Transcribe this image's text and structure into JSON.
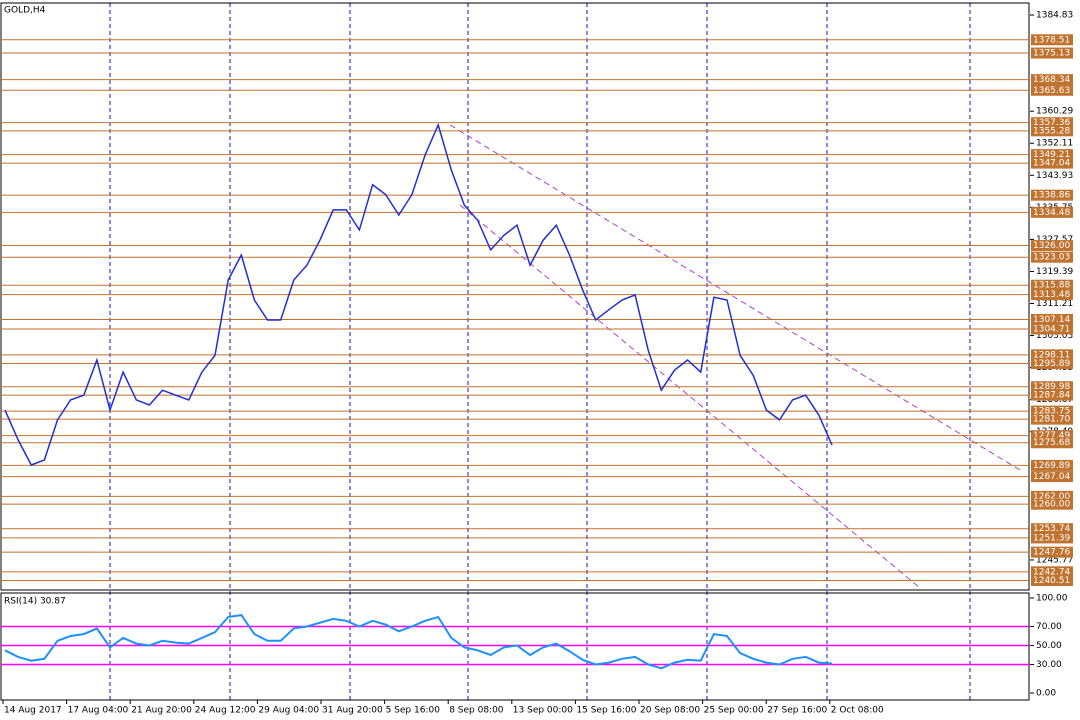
{
  "chart_data": [
    {
      "type": "line",
      "title": "GOLD,H4",
      "series": [
        {
          "name": "GOLD",
          "color": "#1f2fd6",
          "values": [
            1284.0,
            1276.4,
            1270.0,
            1271.3,
            1281.5,
            1286.6,
            1287.8,
            1296.8,
            1284.0,
            1293.7,
            1286.6,
            1285.3,
            1289.1,
            1287.8,
            1286.6,
            1293.7,
            1298.0,
            1317.2,
            1323.6,
            1312.1,
            1307.0,
            1307.0,
            1317.2,
            1321.0,
            1327.4,
            1335.1,
            1335.1,
            1330.0,
            1341.5,
            1339.0,
            1333.8,
            1339.0,
            1349.1,
            1356.8,
            1345.3,
            1336.3,
            1332.5,
            1324.9,
            1328.6,
            1331.2,
            1321.0,
            1327.4,
            1331.2,
            1323.6,
            1314.7,
            1307.0,
            1309.6,
            1312.1,
            1313.4,
            1299.3,
            1289.1,
            1294.2,
            1296.8,
            1293.7,
            1312.8,
            1312.1,
            1298.0,
            1292.9,
            1284.0,
            1281.5,
            1286.6,
            1287.8,
            1282.7,
            1275.1
          ]
        }
      ],
      "ylim": [
        1238.1,
        1387.9
      ],
      "yticks": [
        1384.83,
        1360.29,
        1352.11,
        1343.93,
        1335.75,
        1327.57,
        1319.39,
        1311.21,
        1303.03,
        1294.85,
        1286.67,
        1278.49,
        1245.77
      ],
      "levels": [
        1378.51,
        1375.13,
        1368.34,
        1365.63,
        1357.36,
        1355.28,
        1349.21,
        1347.04,
        1338.86,
        1334.48,
        {
          "value": 1326.0,
          "label": "1326.00"
        },
        1323.03,
        1315.88,
        1313.48,
        1307.14,
        1304.71,
        1298.11,
        1295.89,
        1289.98,
        1287.84,
        1283.75,
        {
          "value": 1281.7,
          "label": "1281.70"
        },
        1277.49,
        1275.68,
        1269.89,
        1267.04,
        {
          "value": 1262.0,
          "label": "1262.00"
        },
        {
          "value": 1260.0,
          "label": "1260.00"
        },
        1253.74,
        1251.39,
        1247.76,
        1242.74,
        1240.51
      ],
      "level_color": "#c0722f"
    },
    {
      "type": "line",
      "title": "RSI(14) 30.87",
      "series": [
        {
          "name": "RSI(14)",
          "color": "#1e90ff",
          "values": [
            45,
            38,
            34,
            36,
            55,
            60,
            62,
            68,
            48,
            58,
            52,
            50,
            55,
            53,
            52,
            58,
            64,
            80,
            82,
            62,
            55,
            55,
            68,
            70,
            74,
            78,
            76,
            70,
            76,
            72,
            65,
            70,
            76,
            80,
            58,
            48,
            45,
            40,
            48,
            50,
            40,
            48,
            52,
            44,
            35,
            30,
            32,
            36,
            38,
            30,
            26,
            32,
            35,
            34,
            62,
            60,
            42,
            36,
            32,
            30,
            36,
            38,
            32,
            31
          ]
        }
      ],
      "ylim": [
        0,
        100
      ],
      "yticks": [
        {
          "value": 100,
          "label": "100.00"
        },
        {
          "value": 70,
          "label": "70.00"
        },
        {
          "value": 50,
          "label": "50.00"
        },
        {
          "value": 30,
          "label": "30.00"
        },
        {
          "value": 0,
          "label": "0.00"
        }
      ],
      "levels": [
        70,
        50,
        30
      ],
      "level_color": "#ff00ff",
      "x_axis_labels": [
        "14 Aug 2017",
        "17 Aug 04:00",
        "21 Aug 20:00",
        "24 Aug 12:00",
        "29 Aug 04:00",
        "31 Aug 20:00",
        "5 Sep 16:00",
        "8 Sep 08:00",
        "13 Sep 00:00",
        "15 Sep 16:00",
        "20 Sep 08:00",
        "25 Sep 00:00",
        "27 Sep 16:00",
        "2 Oct 08:00"
      ]
    }
  ]
}
